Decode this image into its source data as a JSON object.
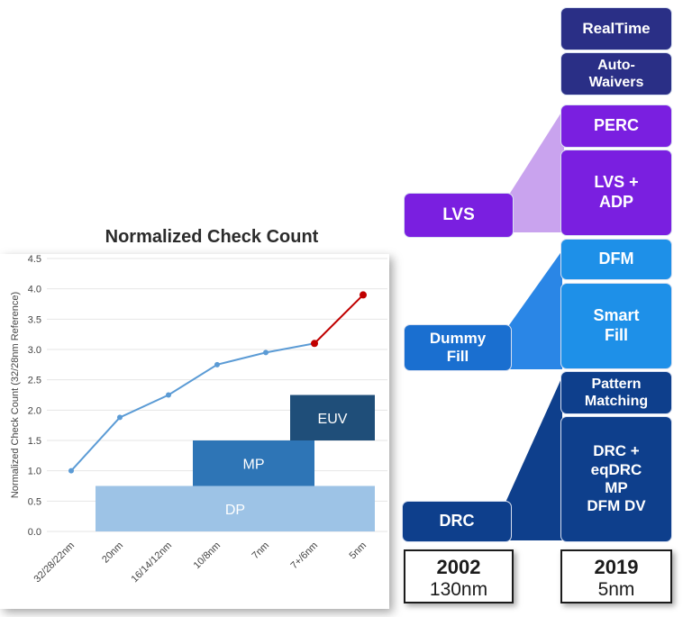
{
  "chart_data": {
    "type": "line",
    "title": "Normalized Check Count",
    "ylabel": "Normalized Check Count (32/28nm Reference)",
    "xlabel": "",
    "categories": [
      "32/28/22nm",
      "20nm",
      "16/14/12nm",
      "10/8nm",
      "7nm",
      "7+/6nm",
      "5nm"
    ],
    "ylim": [
      0,
      4.5
    ],
    "yticks": [
      "0.0",
      "0.5",
      "1.0",
      "1.5",
      "2.0",
      "2.5",
      "3.0",
      "3.5",
      "4.0",
      "4.5"
    ],
    "grid": true,
    "series": [
      {
        "values": [
          1.0,
          1.88,
          2.25,
          2.75,
          2.95,
          3.1,
          null
        ],
        "color": "#5b9bd5"
      },
      {
        "values": [
          null,
          null,
          null,
          null,
          null,
          3.1,
          3.9
        ],
        "color": "#c00000"
      }
    ],
    "overlays": [
      {
        "label": "DP",
        "x_from": "20nm",
        "x_to": "5nm",
        "y_from": 0,
        "y_to": 0.75,
        "color": "#9dc3e6"
      },
      {
        "label": "MP",
        "x_from": "10/8nm",
        "x_to": "7+/6nm",
        "y_from": 0.75,
        "y_to": 1.5,
        "color": "#2e75b6"
      },
      {
        "label": "EUV",
        "x_from": "7+/6nm",
        "x_to": "5nm",
        "y_from": 1.5,
        "y_to": 2.25,
        "color": "#1f4e79"
      }
    ]
  },
  "colors": {
    "purple": "#7a1fe0",
    "purple_dark": "#5a18b0",
    "navy": "#2a2f86",
    "blue_light": "#1e90e8",
    "blue_mid": "#1a6fd0",
    "blue_dark": "#0e3f8c",
    "connector_purple": "#c9a3ee",
    "connector_blue": "#2a86e6",
    "connector_dark": "#0e3f8c"
  },
  "flow": {
    "left": {
      "lvs": "LVS",
      "dummy_fill": "Dummy\nFill",
      "drc": "DRC"
    },
    "right": {
      "realtime": "RealTime",
      "auto_waivers": "Auto-\nWaivers",
      "perc": "PERC",
      "lvs_adp": "LVS +\nADP",
      "dfm": "DFM",
      "smart_fill": "Smart\nFill",
      "pattern_matching": "Pattern\nMatching",
      "drc_stack": "DRC +\neqDRC\nMP\nDFM DV"
    },
    "years": [
      {
        "year": "2002",
        "node": "130nm"
      },
      {
        "year": "2019",
        "node": "5nm"
      }
    ]
  }
}
